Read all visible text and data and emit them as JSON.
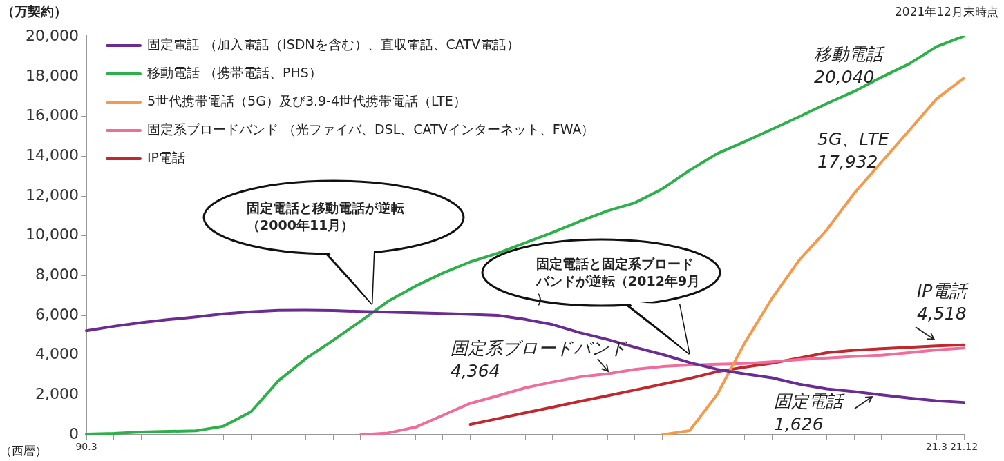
{
  "chart_data": {
    "type": "line",
    "subtitle": "2021年12月末時点",
    "ylabel": "（万契約）",
    "xlabel": "（西暦）",
    "categories": [
      "90.3",
      null,
      null,
      null,
      null,
      null,
      null,
      null,
      null,
      null,
      null,
      null,
      null,
      null,
      null,
      null,
      null,
      null,
      null,
      null,
      null,
      null,
      null,
      null,
      null,
      null,
      null,
      null,
      null,
      null,
      null,
      "21.3",
      "21.12"
    ],
    "series": [
      {
        "name": "固定電話 （加入電話（ISDNを含む）、直収電話、CATV電話）",
        "color": "#6a2c91",
        "values": [
          5230,
          5450,
          5640,
          5790,
          5920,
          6080,
          6180,
          6250,
          6260,
          6240,
          6200,
          6170,
          6130,
          6100,
          6050,
          6000,
          5800,
          5540,
          5130,
          4790,
          4400,
          4040,
          3630,
          3290,
          3060,
          2860,
          2540,
          2310,
          2170,
          2000,
          1850,
          1710,
          1626
        ]
      },
      {
        "name": "移動電話 （携帯電話、PHS）",
        "color": "#2bb04a",
        "values": [
          35,
          70,
          140,
          170,
          200,
          430,
          1150,
          2710,
          3830,
          4750,
          5710,
          6710,
          7470,
          8130,
          8690,
          9130,
          9650,
          10170,
          10730,
          11250,
          11660,
          12360,
          13300,
          14130,
          14730,
          15360,
          15990,
          16650,
          17260,
          17980,
          18640,
          19510,
          20040
        ]
      },
      {
        "name": "5世代携帯電話（5G）及び3.9-4世代携帯電話（LTE）",
        "color": "#f7994a",
        "values": [
          null,
          null,
          null,
          null,
          null,
          null,
          null,
          null,
          null,
          null,
          null,
          null,
          null,
          null,
          null,
          null,
          null,
          null,
          null,
          null,
          null,
          0,
          210,
          2020,
          4600,
          6850,
          8790,
          10300,
          12140,
          13720,
          15290,
          16880,
          17932
        ]
      },
      {
        "name": "固定系ブロードバンド （光ファイバ、DSL、CATVインターネット、FWA）",
        "color": "#f06c9b",
        "values": [
          null,
          null,
          null,
          null,
          null,
          null,
          null,
          null,
          null,
          null,
          0,
          90,
          380,
          980,
          1580,
          1960,
          2360,
          2650,
          2910,
          3060,
          3290,
          3430,
          3500,
          3550,
          3580,
          3670,
          3780,
          3860,
          3940,
          4000,
          4130,
          4270,
          4364
        ]
      },
      {
        "name": "IP電話",
        "color": "#c1272d",
        "values": [
          null,
          null,
          null,
          null,
          null,
          null,
          null,
          null,
          null,
          null,
          null,
          null,
          null,
          null,
          520,
          810,
          1100,
          1390,
          1680,
          1960,
          2250,
          2540,
          2830,
          3170,
          3400,
          3600,
          3860,
          4130,
          4250,
          4330,
          4400,
          4470,
          4518
        ]
      }
    ],
    "ylim": [
      0,
      20050
    ],
    "yticks": [
      {
        "value": 0,
        "label": "0"
      },
      {
        "value": 2000,
        "label": "2,000"
      },
      {
        "value": 4000,
        "label": "4,000"
      },
      {
        "value": 6000,
        "label": "6,000"
      },
      {
        "value": 8000,
        "label": "8,000"
      },
      {
        "value": 10000,
        "label": "10,000"
      },
      {
        "value": 12000,
        "label": "12,000"
      },
      {
        "value": 14000,
        "label": "14,000"
      },
      {
        "value": 16000,
        "label": "16,000"
      },
      {
        "value": 18000,
        "label": "18,000"
      },
      {
        "value": 20000,
        "label": "20,000"
      }
    ],
    "grid": false,
    "legend": "top left",
    "line_style": "solid",
    "annotations": [
      "固定電話と移動電話が逆転（2000年11月）",
      "固定電話と固定系ブロードバンドが逆転（2012年9月）",
      "移動電話",
      "20,040",
      "5G、LTE",
      "17,932",
      "IP電話",
      "4,518",
      "固定系ブロードバンド",
      "4,364",
      "固定電話",
      "1,626"
    ]
  }
}
